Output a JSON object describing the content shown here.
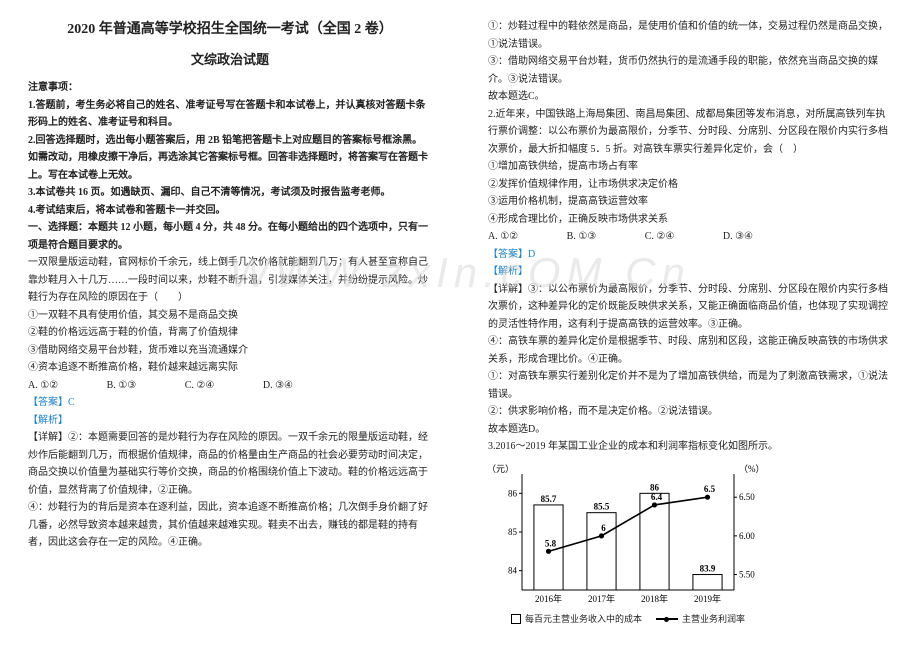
{
  "titles": {
    "main": "2020 年普通高等学校招生全国统一考试（全国 2 卷）",
    "sub": "文综政治试题"
  },
  "notice": {
    "head": "注意事项：",
    "n1": "1.答题前，考生务必将自己的姓名、准考证号写在答题卡和本试卷上，并认真核对答题卡条形码上的姓名、准考证号和科目。",
    "n2": "2.回答选择题时，选出每小题答案后，用 2B 铅笔把答题卡上对应题目的答案标号框涂黑。如需改动，用橡皮擦干净后，再选涂其它答案标号框。回答非选择题时，将答案写在答题卡上。写在本试卷上无效。",
    "n3": "3.本试卷共 16 页。如遇缺页、漏印、自己不清等情况，考试须及时报告监考老师。",
    "n4": "4.考试结束后，将本试卷和答题卡一并交回。"
  },
  "section1": "一、选择题：本题共 12 小题，每小题 4 分，共 48 分。在每小题给出的四个选项中，只有一项是符合题目要求的。",
  "q1": {
    "stem": "一双限量版运动鞋，官网标价千余元，线上倒手几次价格就能翻到几万；有人甚至宣称自己靠炒鞋月入十几万……一段时间以来，炒鞋不断升温，引发媒体关注，并纷纷提示风险。炒鞋行为存在风险的原因在于（　　）",
    "o1": "①一双鞋不具有使用价值，其交易不是商品交换",
    "o2": "②鞋的价格远远高于鞋的价值，背离了价值规律",
    "o3": "③借助网络交易平台炒鞋，货币难以充当流通媒介",
    "o4": "④资本追逐不断推高价格，鞋价越来越远离实际",
    "opts": {
      "A": "A. ①②",
      "B": "B. ①③",
      "C": "C. ②④",
      "D": "D. ③④"
    },
    "ans": "【答案】C",
    "ahLabel": "【解析】",
    "a1": "【详解】②：本题需要回答的是炒鞋行为存在风险的原因。一双千余元的限量版运动鞋，经炒作后能翻到几万，而根据价值规律，商品的价格量由生产商品的社会必要劳动时间决定，商品交换以价值量为基础实行等价交换，商品的价格围绕价值上下波动。鞋的价格远远高于价值，显然背离了价值规律，②正确。",
    "a2": "④：炒鞋行为的背后是资本在逐利益，因此，资本追逐不断推高价格；几次倒手身价翻了好几番，必然导致资本越来越贵，其价值越来越难实现。鞋卖不出去，赚钱的都是鞋的持有者，因此这会存在一定的风险。④正确。"
  },
  "right": {
    "r1": "①：炒鞋过程中的鞋依然是商品，是使用价值和价值的统一体，交易过程仍然是商品交换，①说法错误。",
    "r2": "③：借助网络交易平台炒鞋，货币仍然执行的是流通手段的职能，依然充当商品交换的媒介。③说法错误。",
    "r3": "故本题选C。"
  },
  "q2": {
    "stem": "2.近年来，中国铁路上海局集团、南昌局集团、成都局集团等发布消息，对所属高铁列车执行票价调整：以公布票价为最高限价，分季节、分时段、分席别、分区段在限价内实行多档次票价，最大折扣幅度 5．5 折。对高铁车票实行差异化定价，会（　）",
    "o1": "①增加高铁供给，提高市场占有率",
    "o2": "②发挥价值规律作用，让市场供求决定价格",
    "o3": "③运用价格机制，提高高铁运营效率",
    "o4": "④形成合理比价，正确反映市场供求关系",
    "opts": {
      "A": "A. ①②",
      "B": "B. ①③",
      "C": "C. ②④",
      "D": "D. ③④"
    },
    "ans": "【答案】D",
    "ahLabel": "【解析】",
    "a1": "【详解】③：以公布票价为最高限价，分季节、分时段、分席别、分区段在限价内实行多档次票价，这种差异化的定价既能反映供求关系，又能正确面临商品价值，也体现了实现调控的灵活性特作用，这有利于提高高铁的运营效率。③正确。",
    "a2": "④：高铁车票的差异化定价是根据季节、时段、席别和区段，这能正确反映高铁的市场供求关系，形成合理比价。④正确。",
    "a3": "①：对高铁车票实行差别化定价并不是为了增加高铁供给，而是为了刺激高铁需求，①说法错误。",
    "a4": "②：供求影响价格，而不是决定价格。②说法错误。",
    "a5": "故本题选D。"
  },
  "q3": {
    "stem": "3.2016～2019 年某国工业企业的成本和利润率指标变化如图所示。"
  },
  "chart": {
    "type": "combo-bar-line",
    "years": [
      "2016年",
      "2017年",
      "2018年",
      "2019年"
    ],
    "bar_values": [
      85.7,
      85.5,
      86.0,
      83.9
    ],
    "line_values": [
      5.8,
      6.0,
      6.4,
      6.5
    ],
    "left_axis_label": "（元）",
    "right_axis_label": "（%）",
    "left_ticks": [
      86,
      85,
      84
    ],
    "right_ticks": [
      6.5,
      6.0,
      5.5
    ],
    "bar_color": "#ffffff",
    "bar_stroke": "#000000",
    "line_color": "#000000",
    "grid_color": "#888888",
    "background_color": "#ffffff",
    "title_fontsize": 9,
    "left_ylim": [
      83.5,
      86.5
    ],
    "right_ylim": [
      5.3,
      6.8
    ],
    "legend": {
      "bar": "每百元主营业务收入中的成本",
      "line": "主营业务利润率"
    }
  },
  "colors": {
    "answer": "#1e7fc2",
    "text": "#222222",
    "watermark": "#d9d9d9"
  }
}
